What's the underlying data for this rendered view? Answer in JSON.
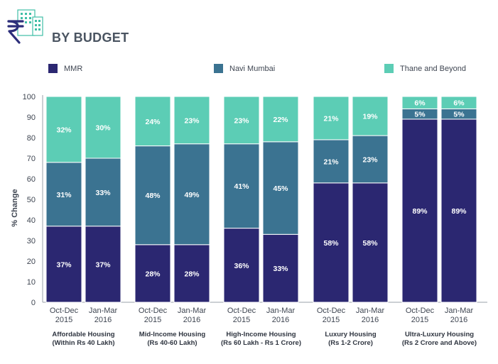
{
  "header": {
    "title": "BY BUDGET",
    "icon": "rupee-building-icon",
    "icon_color": "#2c2e7a",
    "accent_color": "#3fbfa6"
  },
  "legend": [
    {
      "label": "MMR",
      "color": "#2b2771"
    },
    {
      "label": "Navi Mumbai",
      "color": "#3b7391"
    },
    {
      "label": "Thane and Beyond",
      "color": "#5ccdb5"
    }
  ],
  "chart_data": {
    "type": "bar",
    "stacked": true,
    "ylabel": "% Change",
    "ylim": [
      0,
      100
    ],
    "yticks": [
      0,
      10,
      20,
      30,
      40,
      50,
      60,
      70,
      80,
      90,
      100
    ],
    "grid": false,
    "legend_position": "top",
    "groups": [
      {
        "name": [
          "Affordable Housing",
          "(Within Rs 40 Lakh)"
        ],
        "categories": [
          [
            "Oct-Dec",
            "2015"
          ],
          [
            "Jan-Mar",
            "2016"
          ]
        ]
      },
      {
        "name": [
          "Mid-Income Housing",
          "(Rs 40-60 Lakh)"
        ],
        "categories": [
          [
            "Oct-Dec",
            "2015"
          ],
          [
            "Jan-Mar",
            "2016"
          ]
        ]
      },
      {
        "name": [
          "High-Income Housing",
          "(Rs 60 Lakh - Rs 1 Crore)"
        ],
        "categories": [
          [
            "Oct-Dec",
            "2015"
          ],
          [
            "Jan-Mar",
            "2016"
          ]
        ]
      },
      {
        "name": [
          "Luxury Housing",
          "(Rs 1-2 Crore)"
        ],
        "categories": [
          [
            "Oct-Dec",
            "2015"
          ],
          [
            "Jan-Mar",
            "2016"
          ]
        ]
      },
      {
        "name": [
          "Ultra-Luxury Housing",
          "(Rs 2 Crore and Above)"
        ],
        "categories": [
          [
            "Oct-Dec",
            "2015"
          ],
          [
            "Jan-Mar",
            "2016"
          ]
        ]
      }
    ],
    "series": [
      {
        "name": "MMR",
        "color": "#2b2771",
        "values": [
          37,
          37,
          28,
          28,
          36,
          33,
          58,
          58,
          89,
          89
        ]
      },
      {
        "name": "Navi Mumbai",
        "color": "#3b7391",
        "values": [
          31,
          33,
          48,
          49,
          41,
          45,
          21,
          23,
          5,
          5
        ]
      },
      {
        "name": "Thane and Beyond",
        "color": "#5ccdb5",
        "values": [
          32,
          30,
          24,
          23,
          23,
          22,
          21,
          19,
          6,
          6
        ]
      }
    ],
    "data_labels": [
      [
        "37%",
        "37%",
        "28%",
        "28%",
        "36%",
        "33%",
        "58%",
        "58%",
        "89%",
        "89%"
      ],
      [
        "31%",
        "33%",
        "48%",
        "49%",
        "41%",
        "45%",
        "21%",
        "23%",
        "5%",
        "5%"
      ],
      [
        "32%",
        "30%",
        "24%",
        "23%",
        "23%",
        "22%",
        "21%",
        "19%",
        "6%",
        "6%"
      ]
    ]
  }
}
